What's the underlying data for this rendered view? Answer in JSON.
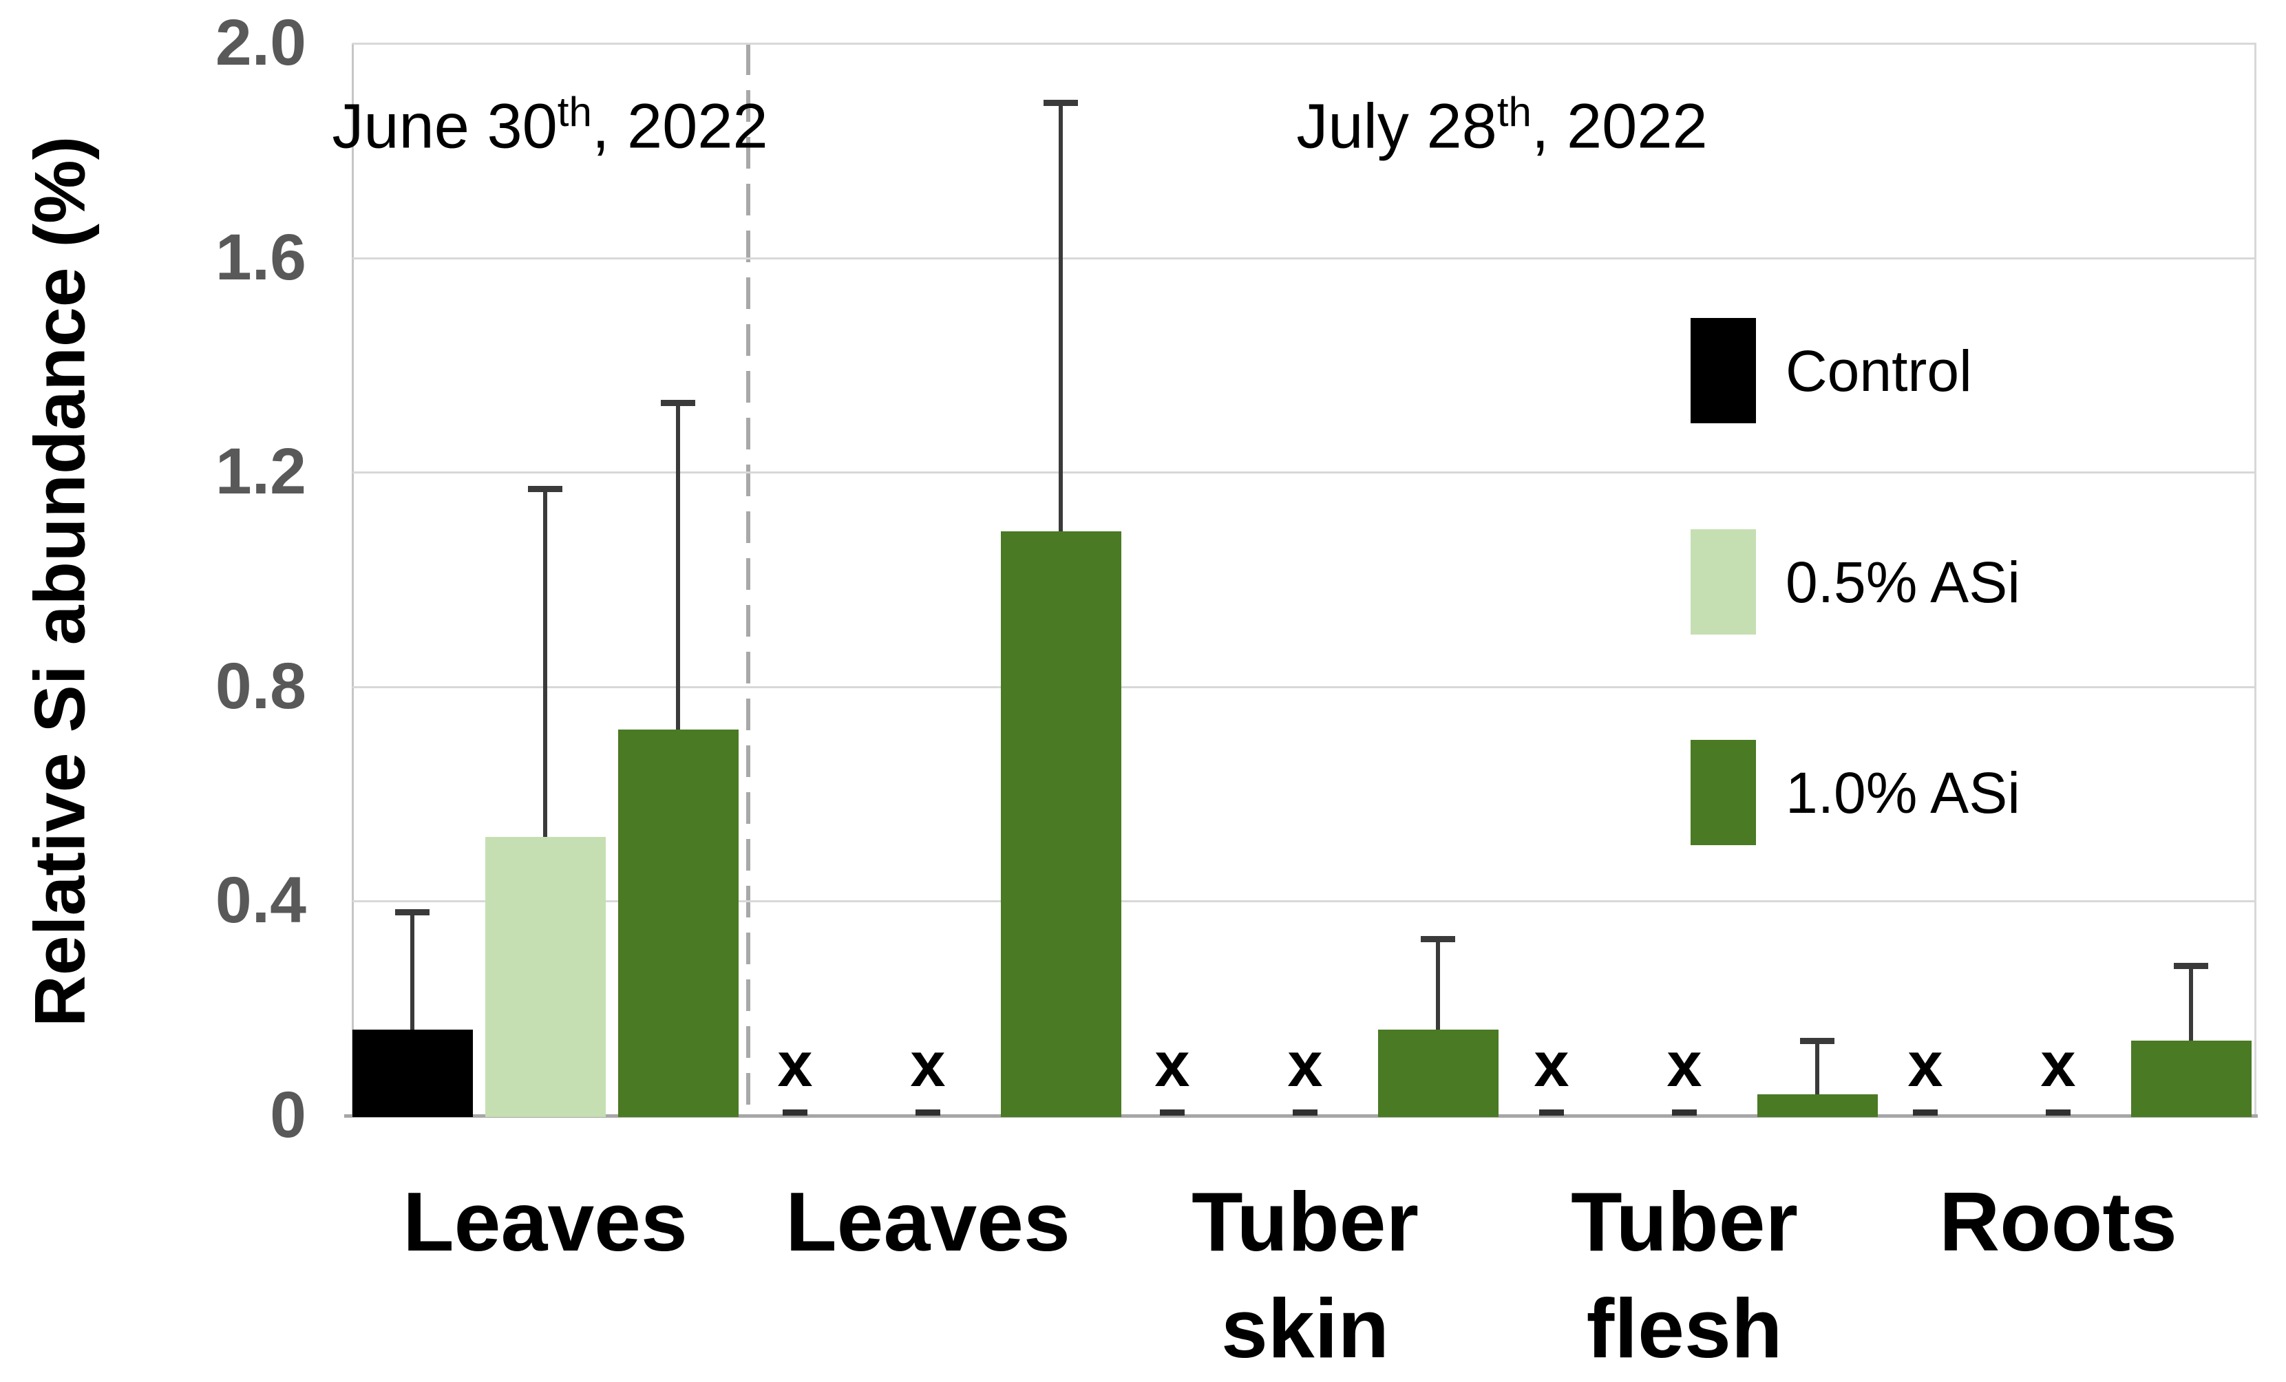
{
  "figure": {
    "panel_june": {
      "pre": "June 30",
      "sup": "th",
      "post": ", 2022"
    },
    "panel_july": {
      "pre": "July 28",
      "sup": "th",
      "post": ", 2022"
    }
  },
  "chart_data": {
    "type": "bar",
    "title": "",
    "ylabel": "Relative Si abundance (%)",
    "xlabel": "",
    "ylim": [
      0,
      2.0
    ],
    "yticks": [
      2.0,
      1.6,
      1.2,
      0.8,
      0.4,
      0
    ],
    "ytick_labels": [
      "2.0",
      "1.6",
      "1.2",
      "0.8",
      "0.4",
      "0"
    ],
    "grid": true,
    "legend_position": "inside-upper-right",
    "not_detected_marker": "x",
    "panels": [
      {
        "title": "June 30th, 2022",
        "categories": [
          "Leaves"
        ]
      },
      {
        "title": "July 28th, 2022",
        "categories": [
          "Leaves",
          "Tuber skin",
          "Tuber flesh",
          "Roots"
        ]
      }
    ],
    "series": [
      {
        "name": "Control",
        "color": "#000000"
      },
      {
        "name": "0.5% ASi",
        "color": "#C5DFB2"
      },
      {
        "name": "1.0% ASi",
        "color": "#4A7A24"
      }
    ],
    "categories": [
      "Leaves",
      "Leaves",
      "Tuber skin",
      "Tuber flesh",
      "Roots"
    ],
    "groups": [
      {
        "label_lines": [
          "Leaves"
        ],
        "panel": "June 30th, 2022",
        "bars": [
          {
            "series": "Control",
            "value": 0.16,
            "err_top": 0.38
          },
          {
            "series": "0.5% ASi",
            "value": 0.52,
            "err_top": 1.17
          },
          {
            "series": "1.0% ASi",
            "value": 0.72,
            "err_top": 1.33
          }
        ]
      },
      {
        "label_lines": [
          "Leaves"
        ],
        "panel": "July 28th, 2022",
        "bars": [
          {
            "series": "Control",
            "not_detected": true
          },
          {
            "series": "0.5% ASi",
            "not_detected": true
          },
          {
            "series": "1.0% ASi",
            "value": 1.09,
            "err_top": 1.89
          }
        ]
      },
      {
        "label_lines": [
          "Tuber",
          "skin"
        ],
        "panel": "July 28th, 2022",
        "bars": [
          {
            "series": "Control",
            "not_detected": true
          },
          {
            "series": "0.5% ASi",
            "not_detected": true
          },
          {
            "series": "1.0% ASi",
            "value": 0.16,
            "err_top": 0.33
          }
        ]
      },
      {
        "label_lines": [
          "Tuber",
          "flesh"
        ],
        "panel": "July 28th, 2022",
        "bars": [
          {
            "series": "Control",
            "not_detected": true
          },
          {
            "series": "0.5% ASi",
            "not_detected": true
          },
          {
            "series": "1.0% ASi",
            "value": 0.04,
            "err_top": 0.14
          }
        ]
      },
      {
        "label_lines": [
          "Roots"
        ],
        "panel": "July 28th, 2022",
        "bars": [
          {
            "series": "Control",
            "not_detected": true
          },
          {
            "series": "0.5% ASi",
            "not_detected": true
          },
          {
            "series": "1.0% ASi",
            "value": 0.14,
            "err_top": 0.28
          }
        ]
      }
    ],
    "colors": {
      "error_bar": "#3A3A3A",
      "gridline": "#D8D8D8",
      "baseline": "#A6A6A6",
      "dashed_separator": "#A8A8A8",
      "tick_label": "#595959"
    }
  }
}
